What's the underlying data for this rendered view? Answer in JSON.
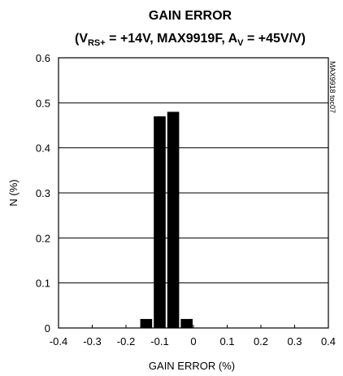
{
  "chart_data": {
    "type": "bar",
    "title": "GAIN ERROR",
    "subtitle": {
      "open": "(V",
      "sub1": "RS+",
      "mid": " = +14V, MAX9919F, A",
      "sub2": "V",
      "close": " = +45V/V)"
    },
    "xlabel": "GAIN ERROR (%)",
    "ylabel": "N (%)",
    "side_label": "MAX9918 toc07",
    "xlim": [
      -0.4,
      0.4
    ],
    "ylim": [
      0,
      0.6
    ],
    "x_ticks": [
      -0.4,
      -0.3,
      -0.2,
      -0.1,
      0,
      0.1,
      0.2,
      0.3,
      0.4
    ],
    "x_tick_labels": [
      "-0.4",
      "-0.3",
      "-0.2",
      "-0.1",
      "0",
      "0.1",
      "0.2",
      "0.3",
      "0.4"
    ],
    "y_ticks": [
      0,
      0.1,
      0.2,
      0.3,
      0.4,
      0.5,
      0.6
    ],
    "y_tick_labels": [
      "0",
      "0.1",
      "0.2",
      "0.3",
      "0.4",
      "0.5",
      "0.6"
    ],
    "grid": "horizontal",
    "bin_width": 0.04,
    "bars": [
      {
        "x": -0.16,
        "value": 0.02
      },
      {
        "x": -0.12,
        "value": 0.47
      },
      {
        "x": -0.08,
        "value": 0.48
      },
      {
        "x": -0.04,
        "value": 0.02
      }
    ],
    "bar_color": "#000000"
  }
}
